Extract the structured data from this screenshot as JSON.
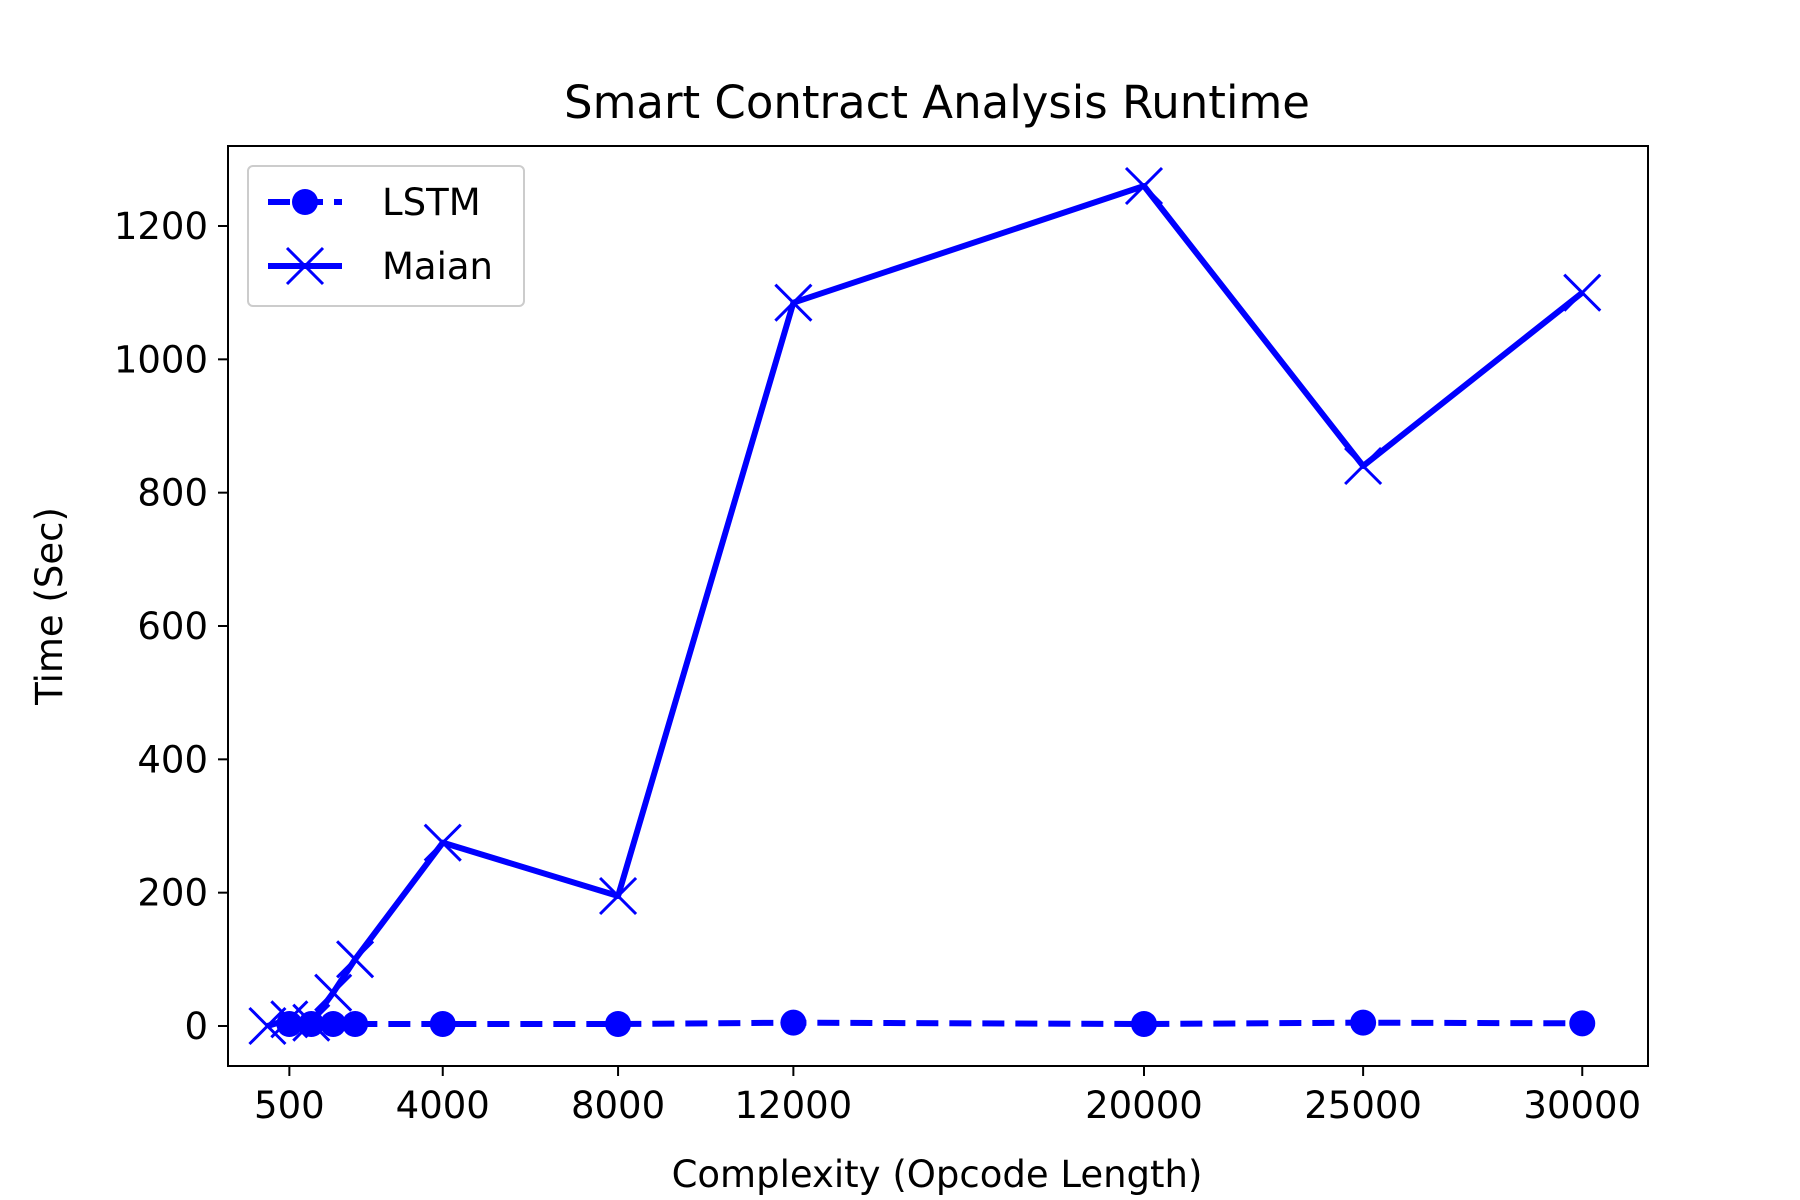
{
  "chart_data": {
    "type": "line",
    "title": "Smart Contract Analysis Runtime",
    "xlabel": "Complexity (Opcode Length)",
    "ylabel": "Time (Sec)",
    "x_tick_labels": [
      {
        "x": 500,
        "label": "500"
      },
      {
        "x": 4000,
        "label": "4000"
      },
      {
        "x": 8000,
        "label": "8000"
      },
      {
        "x": 12000,
        "label": "12000"
      },
      {
        "x": 20000,
        "label": "20000"
      },
      {
        "x": 25000,
        "label": "25000"
      },
      {
        "x": 30000,
        "label": "30000"
      }
    ],
    "y_ticks": [
      0,
      200,
      400,
      600,
      800,
      1000,
      1200
    ],
    "xlim": [
      -900,
      31500
    ],
    "ylim": [
      -60,
      1320
    ],
    "grid": false,
    "legend_position": "upper-left",
    "series": [
      {
        "name": "LSTM",
        "color": "#0000ff",
        "line_style": "dashed",
        "marker": "circle",
        "points": [
          {
            "x": 500,
            "y": 3
          },
          {
            "x": 1000,
            "y": 3
          },
          {
            "x": 1500,
            "y": 3
          },
          {
            "x": 2000,
            "y": 3
          },
          {
            "x": 4000,
            "y": 3
          },
          {
            "x": 8000,
            "y": 3
          },
          {
            "x": 12000,
            "y": 5
          },
          {
            "x": 20000,
            "y": 3
          },
          {
            "x": 25000,
            "y": 5
          },
          {
            "x": 30000,
            "y": 4
          }
        ]
      },
      {
        "name": "Maian",
        "color": "#0000ff",
        "line_style": "solid",
        "marker": "x",
        "points": [
          {
            "x": 0,
            "y": 0
          },
          {
            "x": 500,
            "y": 10
          },
          {
            "x": 1000,
            "y": 5
          },
          {
            "x": 1500,
            "y": 50
          },
          {
            "x": 2000,
            "y": 100
          },
          {
            "x": 4000,
            "y": 275
          },
          {
            "x": 8000,
            "y": 195
          },
          {
            "x": 12000,
            "y": 1085
          },
          {
            "x": 20000,
            "y": 1260
          },
          {
            "x": 25000,
            "y": 840
          },
          {
            "x": 30000,
            "y": 1100
          }
        ]
      }
    ]
  }
}
